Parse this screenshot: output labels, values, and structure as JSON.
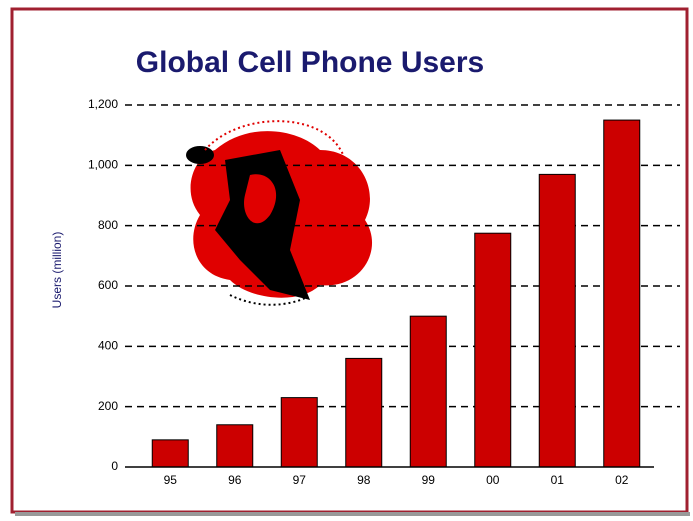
{
  "chart_data": {
    "type": "bar",
    "title": "Global Cell Phone Users",
    "y_label": "Users (million)",
    "categories": [
      "95",
      "96",
      "97",
      "98",
      "99",
      "00",
      "01",
      "02"
    ],
    "values": [
      90,
      140,
      230,
      360,
      500,
      775,
      970,
      1150
    ],
    "color": "#cc0000",
    "ylim": [
      0,
      1200
    ],
    "yticks": [
      0,
      200,
      400,
      600,
      800,
      {
        "value": 1000,
        "label": "1,000"
      },
      {
        "value": 1200,
        "label": "1,200"
      }
    ],
    "grid": true
  }
}
